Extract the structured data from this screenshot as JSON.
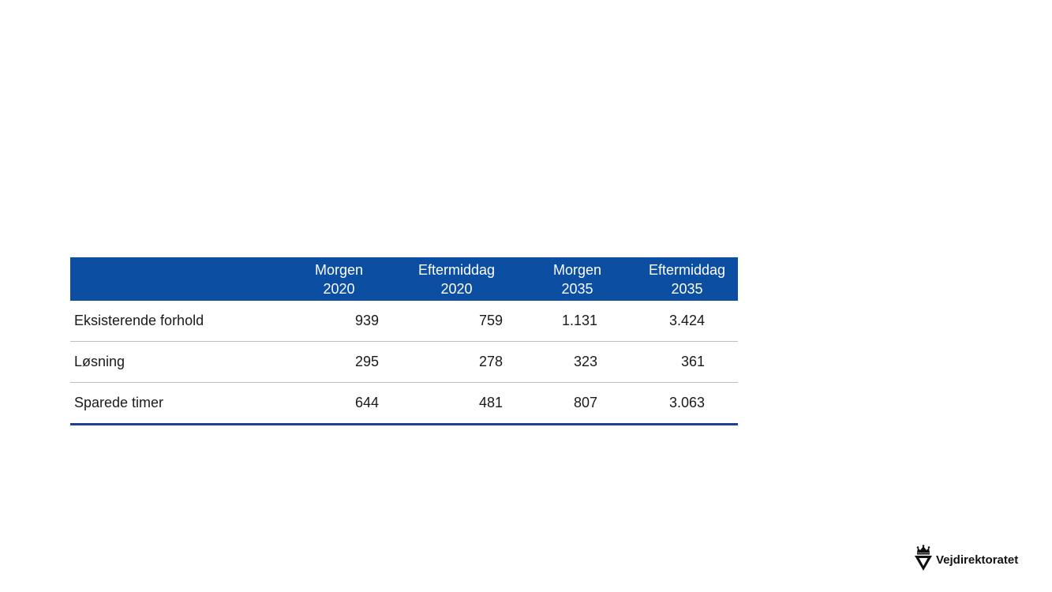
{
  "table": {
    "columns": [
      {
        "line1": "",
        "line2": ""
      },
      {
        "line1": "Morgen",
        "line2": "2020"
      },
      {
        "line1": "Eftermiddag",
        "line2": "2020"
      },
      {
        "line1": "Morgen",
        "line2": "2035"
      },
      {
        "line1": "Eftermiddag",
        "line2": "2035"
      }
    ],
    "rows": [
      {
        "label": "Eksisterende forhold",
        "values": [
          "939",
          "759",
          "1.131",
          "3.424"
        ]
      },
      {
        "label": "Løsning",
        "values": [
          "295",
          "278",
          "323",
          "361"
        ]
      },
      {
        "label": "Sparede timer",
        "values": [
          "644",
          "481",
          "807",
          "3.063"
        ]
      }
    ],
    "header_color": "#0b4ea2",
    "rule_color": "#1f3f93"
  },
  "logo": {
    "text": "Vejdirektoratet",
    "icon": "crown-shield-icon"
  }
}
